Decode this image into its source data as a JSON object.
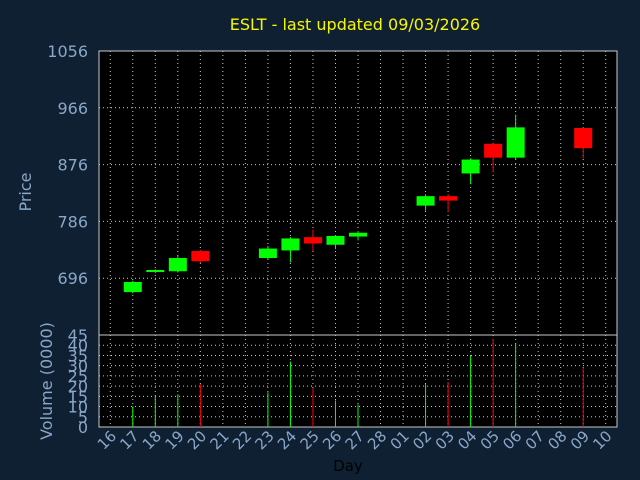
{
  "chart_data": {
    "type": "candlestick",
    "title": "ESLT - last updated 09/03/2026",
    "xlabel": "Day",
    "price_panel": {
      "ylabel": "Price",
      "ylim": [
        606,
        1056
      ],
      "yticks": [
        696,
        786,
        876,
        966,
        1056
      ],
      "grid": true
    },
    "volume_panel": {
      "ylabel": "Volume (0000)",
      "ylim": [
        0,
        45
      ],
      "yticks": [
        0,
        5,
        10,
        15,
        20,
        25,
        30,
        35,
        40,
        45
      ],
      "ytick_labels": [
        "0",
        "5",
        "10",
        "15",
        "20",
        "25",
        "30",
        "35",
        "40",
        "45"
      ],
      "grid": true
    },
    "x_ticks": [
      "16",
      "17",
      "18",
      "19",
      "20",
      "21",
      "22",
      "23",
      "24",
      "25",
      "26",
      "27",
      "28",
      "01",
      "02",
      "03",
      "04",
      "05",
      "06",
      "07",
      "08",
      "09",
      "10"
    ],
    "candles": [
      {
        "day": "17",
        "open": 674,
        "high": 692,
        "low": 672,
        "close": 690,
        "volume": 10
      },
      {
        "day": "18",
        "open": 707,
        "high": 710,
        "low": 704,
        "close": 709,
        "volume": 15
      },
      {
        "day": "19",
        "open": 707,
        "high": 731,
        "low": 705,
        "close": 728,
        "volume": 16
      },
      {
        "day": "20",
        "open": 739,
        "high": 741,
        "low": 720,
        "close": 723,
        "volume": 21
      },
      {
        "day": "23",
        "open": 728,
        "high": 747,
        "low": 726,
        "close": 743,
        "volume": 17
      },
      {
        "day": "24",
        "open": 740,
        "high": 761,
        "low": 721,
        "close": 759,
        "volume": 32
      },
      {
        "day": "25",
        "open": 761,
        "high": 773,
        "low": 739,
        "close": 751,
        "volume": 19
      },
      {
        "day": "26",
        "open": 749,
        "high": 764,
        "low": 742,
        "close": 763,
        "volume": 13
      },
      {
        "day": "27",
        "open": 762,
        "high": 771,
        "low": 756,
        "close": 768,
        "volume": 11
      },
      {
        "day": "02",
        "open": 811,
        "high": 829,
        "low": 803,
        "close": 826,
        "volume": 21
      },
      {
        "day": "03",
        "open": 826,
        "high": 829,
        "low": 801,
        "close": 819,
        "volume": 22
      },
      {
        "day": "04",
        "open": 862,
        "high": 886,
        "low": 845,
        "close": 884,
        "volume": 35
      },
      {
        "day": "05",
        "open": 909,
        "high": 911,
        "low": 864,
        "close": 887,
        "volume": 43
      },
      {
        "day": "06",
        "open": 887,
        "high": 955,
        "low": 884,
        "close": 935,
        "volume": 41
      },
      {
        "day": "09",
        "open": 934,
        "high": 935,
        "low": 886,
        "close": 902,
        "volume": 29
      }
    ],
    "colors": {
      "background": "#0f2033",
      "plot_background": "#000000",
      "up": "#00ff00",
      "down": "#ff0000",
      "grid": "#c8c8c8",
      "axis_text": "#8aa7c7",
      "title": "#f7f700"
    }
  }
}
